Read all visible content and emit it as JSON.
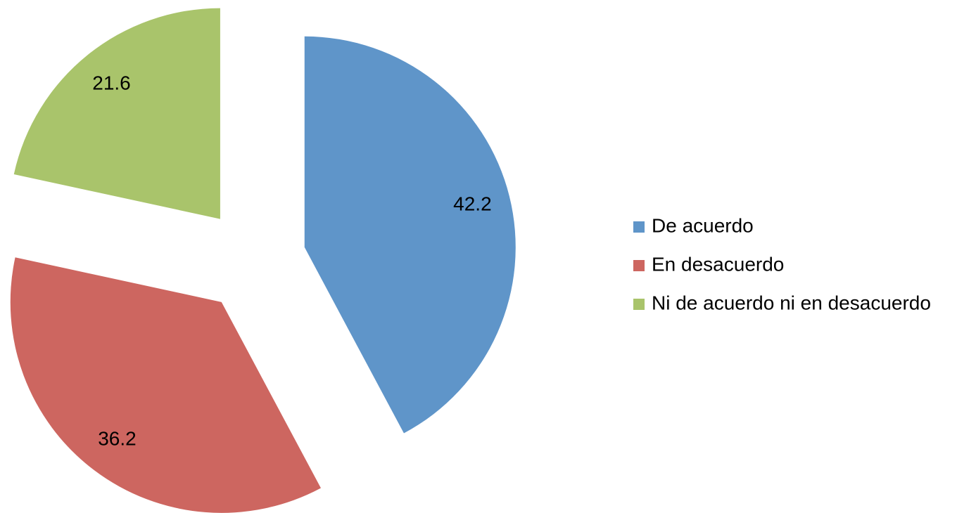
{
  "chart_data": {
    "type": "pie",
    "categories": [
      "De acuerdo",
      "En desacuerdo",
      "Ni de acuerdo ni en desacuerdo"
    ],
    "values": [
      42.2,
      36.2,
      21.6
    ],
    "colors": [
      "#5f95c9",
      "#cd6660",
      "#a9c46b"
    ],
    "exploded": true,
    "legend": "right"
  }
}
